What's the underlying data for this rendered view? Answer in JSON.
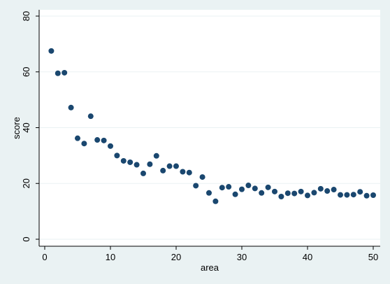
{
  "chart_data": {
    "type": "scatter",
    "title": "",
    "xlabel": "area",
    "ylabel": "score",
    "xlim": [
      0,
      50
    ],
    "ylim": [
      0,
      80
    ],
    "x_ticks": [
      0,
      10,
      20,
      30,
      40,
      50
    ],
    "y_ticks": [
      0,
      20,
      40,
      60,
      80
    ],
    "grid": "horizontal",
    "colors": {
      "marker": "#1a476f",
      "grid": "#eaf2f3",
      "plot_bg": "#ffffff",
      "outer_bg": "#eaf2f3"
    },
    "series": [
      {
        "x": [
          1,
          2,
          3,
          4,
          5,
          6,
          7,
          8,
          9,
          10,
          11,
          12,
          13,
          14,
          15,
          16,
          17,
          18,
          19,
          20,
          21,
          22,
          23,
          24,
          25,
          26,
          27,
          28,
          29,
          30,
          31,
          32,
          33,
          34,
          35,
          36,
          37,
          38,
          39,
          40,
          41,
          42,
          43,
          44,
          45,
          46,
          47,
          48,
          49,
          50
        ],
        "y": [
          67.5,
          59.5,
          59.7,
          47.2,
          36.2,
          34.3,
          44.1,
          35.6,
          35.4,
          33.4,
          30.0,
          28.1,
          27.6,
          26.7,
          23.6,
          26.9,
          29.9,
          24.6,
          26.2,
          26.2,
          24.2,
          23.9,
          19.2,
          22.3,
          16.6,
          13.6,
          18.5,
          18.8,
          16.1,
          17.9,
          19.3,
          18.2,
          16.6,
          18.6,
          17.1,
          15.3,
          16.5,
          16.4,
          17.1,
          15.7,
          16.7,
          18.1,
          17.3,
          17.8,
          15.9,
          15.9,
          16.0,
          17.0,
          15.6,
          15.8
        ]
      }
    ]
  }
}
